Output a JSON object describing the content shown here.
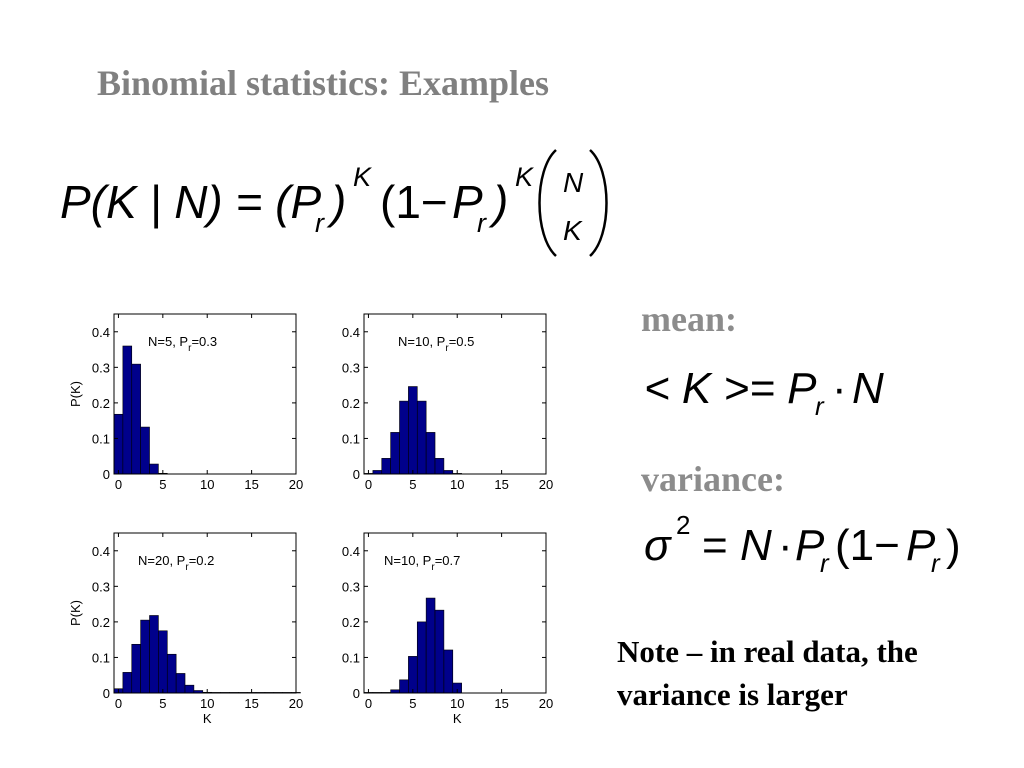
{
  "slide": {
    "title": "Binomial statistics: Examples",
    "mean_label": "mean:",
    "variance_label": "variance:",
    "note_lines": [
      "Note – in real data, the",
      "variance is larger"
    ]
  },
  "formulas": {
    "binomial": "P(K | N) = (P_r)^K (1 − P_r)^K (N choose K)",
    "mean": "<K> = P_r · N",
    "variance": "σ^2 = N · P_r (1 − P_r)"
  },
  "colors": {
    "title": "#808080",
    "bar": "#00008b",
    "label_gray": "#8c8c8c"
  },
  "chart_data": [
    {
      "type": "bar",
      "annotation": "N=5, P_r=0.3",
      "ann_main": "N=5, P",
      "ann_sub": "r",
      "ann_tail": "=0.3",
      "ylabel": "P(K)",
      "xlabel": "",
      "xlim": [
        -0.5,
        20
      ],
      "ylim": [
        0,
        0.45
      ],
      "xticks": [
        0,
        5,
        10,
        15,
        20
      ],
      "yticks": [
        0,
        0.1,
        0.2,
        0.3,
        0.4
      ],
      "x": [
        0,
        1,
        2,
        3,
        4,
        5
      ],
      "values": [
        0.168,
        0.36,
        0.309,
        0.132,
        0.028,
        0.002
      ]
    },
    {
      "type": "bar",
      "annotation": "N=10, P_r=0.5",
      "ann_main": "N=10, P",
      "ann_sub": "r",
      "ann_tail": "=0.5",
      "ylabel": "",
      "xlabel": "",
      "xlim": [
        -0.5,
        20
      ],
      "ylim": [
        0,
        0.45
      ],
      "xticks": [
        0,
        5,
        10,
        15,
        20
      ],
      "yticks": [
        0,
        0.1,
        0.2,
        0.3,
        0.4
      ],
      "x": [
        0,
        1,
        2,
        3,
        4,
        5,
        6,
        7,
        8,
        9,
        10
      ],
      "values": [
        0.001,
        0.01,
        0.044,
        0.117,
        0.205,
        0.246,
        0.205,
        0.117,
        0.044,
        0.01,
        0.001
      ]
    },
    {
      "type": "bar",
      "annotation": "N=20, P_r=0.2",
      "ann_main": "N=20, P",
      "ann_sub": "r",
      "ann_tail": "=0.2",
      "ylabel": "P(K)",
      "xlabel": "K",
      "xlim": [
        -0.5,
        20
      ],
      "ylim": [
        0,
        0.45
      ],
      "xticks": [
        0,
        5,
        10,
        15,
        20
      ],
      "yticks": [
        0,
        0.1,
        0.2,
        0.3,
        0.4
      ],
      "x": [
        0,
        1,
        2,
        3,
        4,
        5,
        6,
        7,
        8,
        9,
        10,
        11,
        12,
        13,
        14,
        15,
        16,
        17,
        18,
        19,
        20
      ],
      "values": [
        0.012,
        0.058,
        0.137,
        0.205,
        0.218,
        0.175,
        0.109,
        0.055,
        0.022,
        0.007,
        0.002,
        0.0005,
        0.0001,
        2e-05,
        0.0,
        0.0,
        0.0,
        0.0,
        0.0,
        0.0,
        0.0
      ]
    },
    {
      "type": "bar",
      "annotation": "N=10, P_r=0.7",
      "ann_main": "N=10, P",
      "ann_sub": "r",
      "ann_tail": "=0.7",
      "ylabel": "",
      "xlabel": "K",
      "xlim": [
        -0.5,
        20
      ],
      "ylim": [
        0,
        0.45
      ],
      "xticks": [
        0,
        5,
        10,
        15,
        20
      ],
      "yticks": [
        0,
        0.1,
        0.2,
        0.3,
        0.4
      ],
      "x": [
        0,
        1,
        2,
        3,
        4,
        5,
        6,
        7,
        8,
        9,
        10
      ],
      "values": [
        0.0,
        0.0001,
        0.001,
        0.009,
        0.037,
        0.103,
        0.2,
        0.267,
        0.233,
        0.121,
        0.028
      ]
    }
  ]
}
